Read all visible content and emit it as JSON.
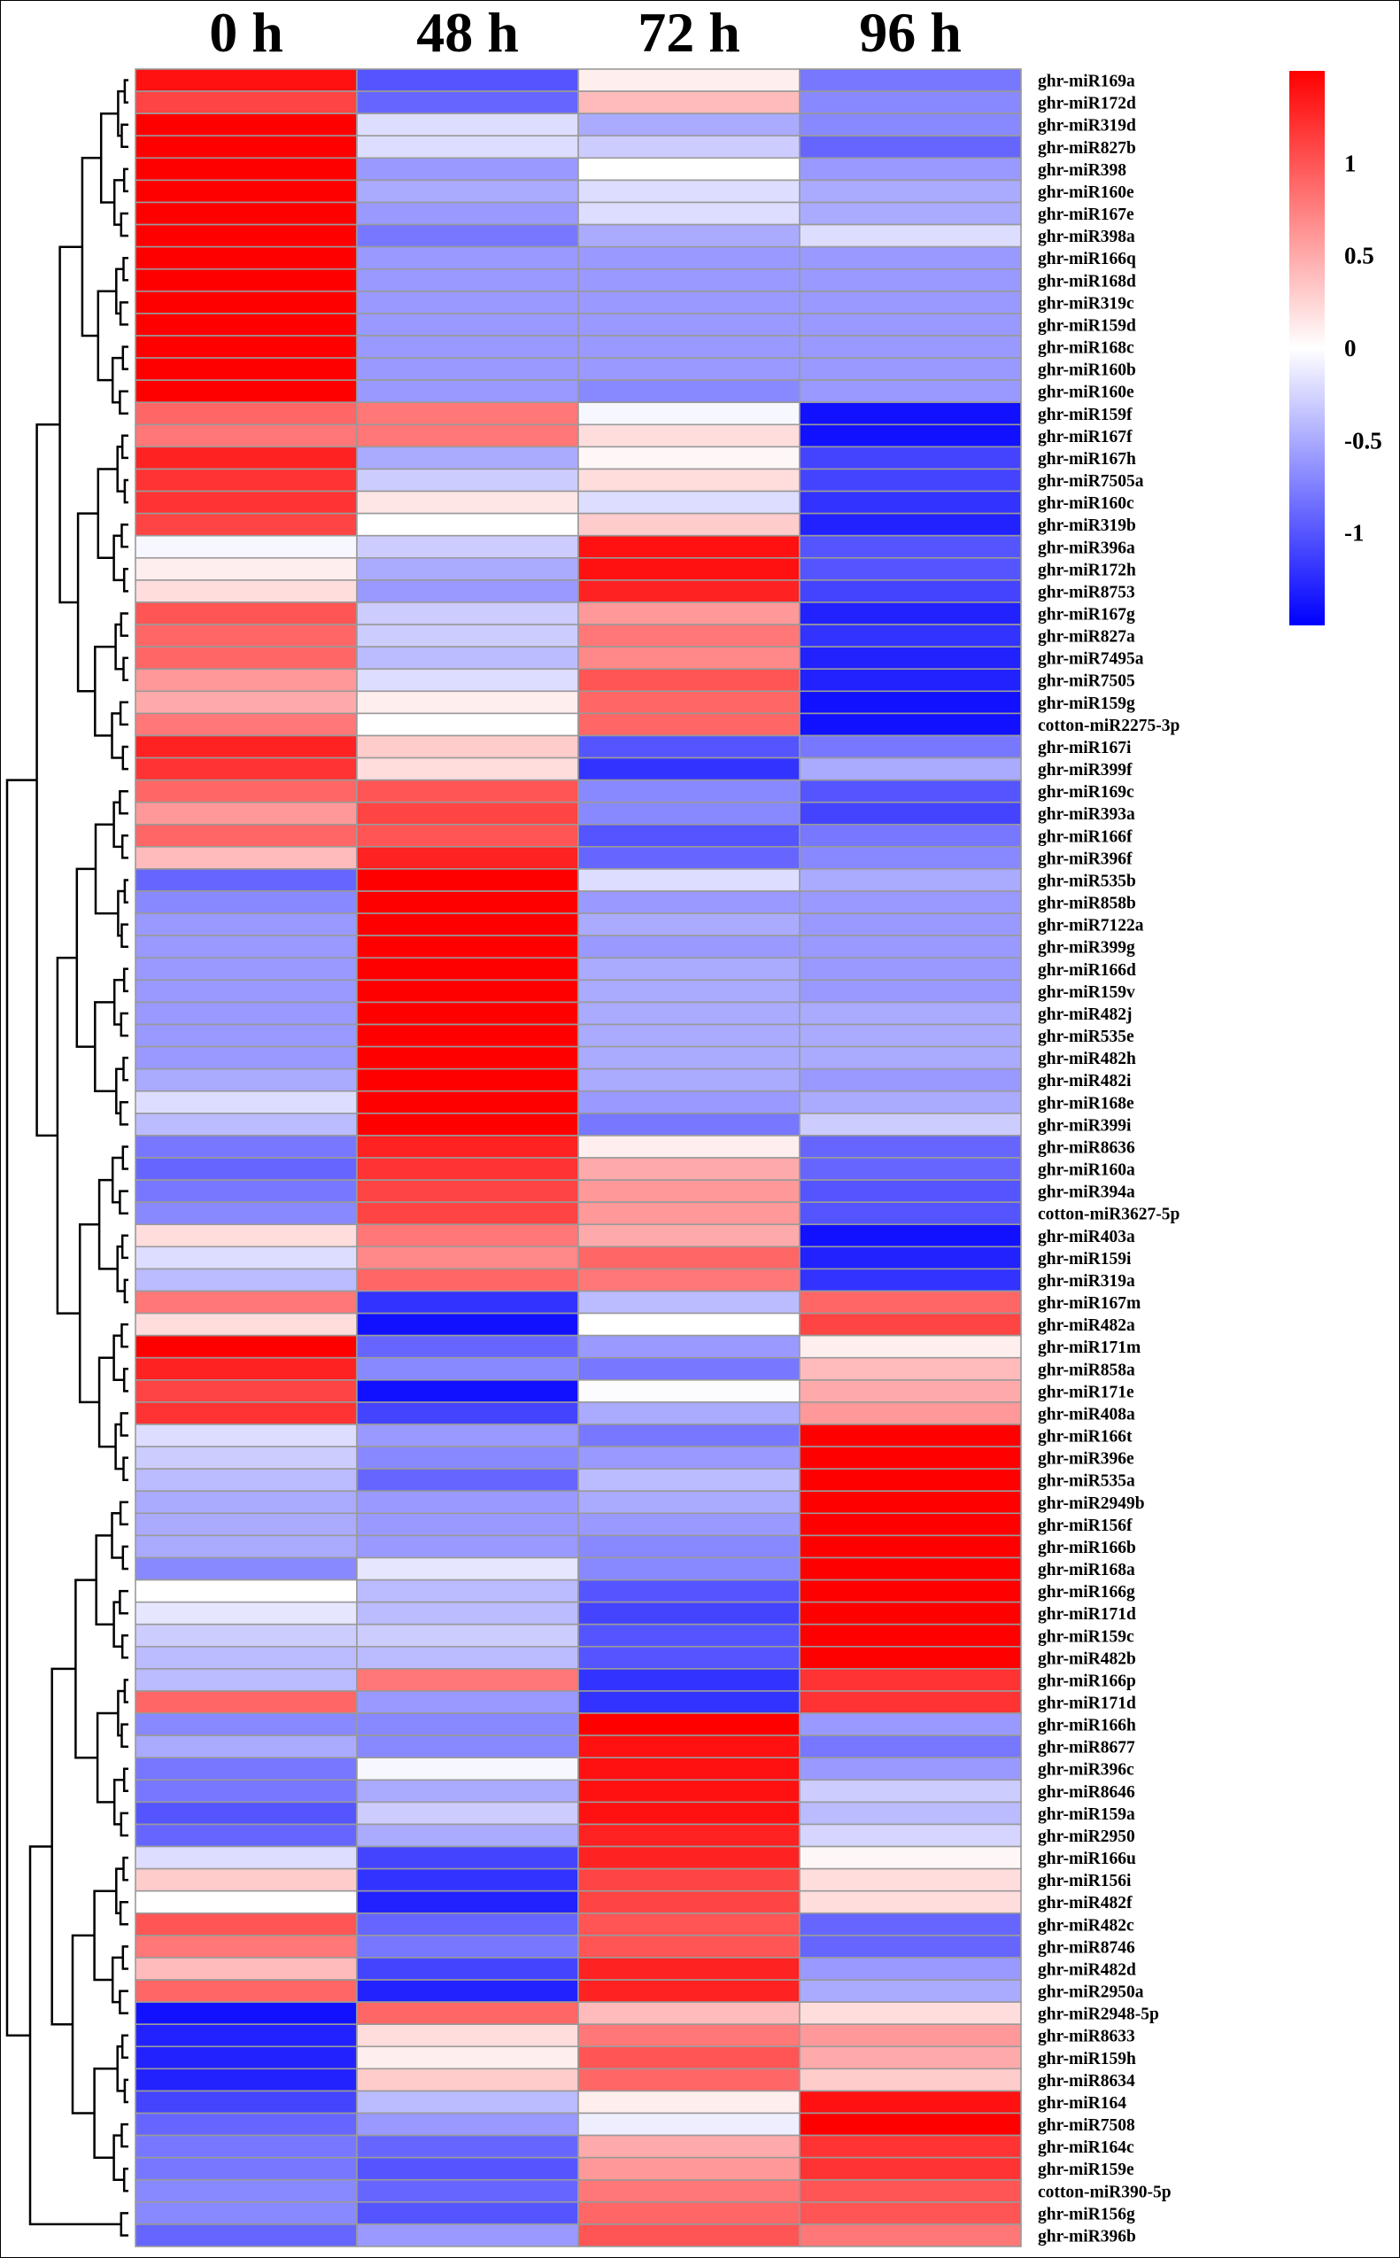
{
  "chart_data": {
    "type": "heatmap",
    "title": "",
    "columns": [
      "0 h",
      "48 h",
      "72 h",
      "96 h"
    ],
    "rows": [
      "ghr-miR169a",
      "ghr-miR172d",
      "ghr-miR319d",
      "ghr-miR827b",
      "ghr-miR398",
      "ghr-miR160e",
      "ghr-miR167e",
      "ghr-miR398a",
      "ghr-miR166q",
      "ghr-miR168d",
      "ghr-miR319c",
      "ghr-miR159d",
      "ghr-miR168c",
      "ghr-miR160b",
      "ghr-miR160e",
      "ghr-miR159f",
      "ghr-miR167f",
      "ghr-miR167h",
      "ghr-miR7505a",
      "ghr-miR160c",
      "ghr-miR319b",
      "ghr-miR396a",
      "ghr-miR172h",
      "ghr-miR8753",
      "ghr-miR167g",
      "ghr-miR827a",
      "ghr-miR7495a",
      "ghr-miR7505",
      "ghr-miR159g",
      "cotton-miR2275-3p",
      "ghr-miR167i",
      "ghr-miR399f",
      "ghr-miR169c",
      "ghr-miR393a",
      "ghr-miR166f",
      "ghr-miR396f",
      "ghr-miR535b",
      "ghr-miR858b",
      "ghr-miR7122a",
      "ghr-miR399g",
      "ghr-miR166d",
      "ghr-miR159v",
      "ghr-miR482j",
      "ghr-miR535e",
      "ghr-miR482h",
      "ghr-miR482i",
      "ghr-miR168e",
      "ghr-miR399i",
      "ghr-miR8636",
      "ghr-miR160a",
      "ghr-miR394a",
      "cotton-miR3627-5p",
      "ghr-miR403a",
      "ghr-miR159i",
      "ghr-miR319a",
      "ghr-miR167m",
      "ghr-miR482a",
      "ghr-miR171m",
      "ghr-miR858a",
      "ghr-miR171e",
      "ghr-miR408a",
      "ghr-miR166t",
      "ghr-miR396e",
      "ghr-miR535a",
      "ghr-miR2949b",
      "ghr-miR156f",
      "ghr-miR166b",
      "ghr-miR168a",
      "ghr-miR166g",
      "ghr-miR171d",
      "ghr-miR159c",
      "ghr-miR482b",
      "ghr-miR166p",
      "ghr-miR171d",
      "ghr-miR166h",
      "ghr-miR8677",
      "ghr-miR396c",
      "ghr-miR8646",
      "ghr-miR159a",
      "ghr-miR2950",
      "ghr-miR166u",
      "ghr-miR156i",
      "ghr-miR482f",
      "ghr-miR482c",
      "ghr-miR8746",
      "ghr-miR482d",
      "ghr-miR2950a",
      "ghr-miR2948-5p",
      "ghr-miR8633",
      "ghr-miR159h",
      "ghr-miR8634",
      "ghr-miR164",
      "ghr-miR7508",
      "ghr-miR164c",
      "ghr-miR159e",
      "cotton-miR390-5p",
      "ghr-miR156g",
      "ghr-miR396b"
    ],
    "values": [
      [
        1.4,
        -1.0,
        0.1,
        -0.8
      ],
      [
        1.1,
        -0.9,
        0.4,
        -0.7
      ],
      [
        1.5,
        -0.2,
        -0.5,
        -0.7
      ],
      [
        1.5,
        -0.2,
        -0.3,
        -0.9
      ],
      [
        1.5,
        -0.6,
        0.0,
        -0.6
      ],
      [
        1.5,
        -0.5,
        -0.2,
        -0.5
      ],
      [
        1.5,
        -0.6,
        -0.2,
        -0.5
      ],
      [
        1.5,
        -0.8,
        -0.5,
        -0.2
      ],
      [
        1.5,
        -0.6,
        -0.6,
        -0.6
      ],
      [
        1.5,
        -0.6,
        -0.6,
        -0.6
      ],
      [
        1.5,
        -0.6,
        -0.6,
        -0.6
      ],
      [
        1.5,
        -0.6,
        -0.6,
        -0.6
      ],
      [
        1.5,
        -0.6,
        -0.6,
        -0.6
      ],
      [
        1.5,
        -0.6,
        -0.6,
        -0.6
      ],
      [
        1.5,
        -0.6,
        -0.7,
        -0.6
      ],
      [
        0.9,
        0.8,
        -0.05,
        -1.4
      ],
      [
        0.8,
        0.8,
        0.2,
        -1.4
      ],
      [
        1.3,
        -0.5,
        0.05,
        -1.1
      ],
      [
        1.2,
        -0.3,
        0.2,
        -1.1
      ],
      [
        1.2,
        0.15,
        -0.2,
        -1.2
      ],
      [
        1.1,
        0.0,
        0.3,
        -1.3
      ],
      [
        -0.05,
        -0.3,
        1.4,
        -1.0
      ],
      [
        0.1,
        -0.5,
        1.4,
        -1.0
      ],
      [
        0.2,
        -0.6,
        1.3,
        -1.1
      ],
      [
        1.0,
        -0.3,
        0.6,
        -1.3
      ],
      [
        0.9,
        -0.3,
        0.8,
        -1.2
      ],
      [
        0.9,
        -0.4,
        0.7,
        -1.3
      ],
      [
        0.6,
        -0.2,
        1.0,
        -1.3
      ],
      [
        0.5,
        0.1,
        0.9,
        -1.4
      ],
      [
        0.8,
        0.0,
        0.9,
        -1.4
      ],
      [
        1.3,
        0.3,
        -1.0,
        -0.8
      ],
      [
        1.2,
        0.2,
        -1.2,
        -0.5
      ],
      [
        0.9,
        1.0,
        -0.7,
        -1.0
      ],
      [
        0.6,
        1.1,
        -0.7,
        -1.1
      ],
      [
        0.9,
        1.0,
        -1.0,
        -0.8
      ],
      [
        0.4,
        1.3,
        -0.9,
        -0.7
      ],
      [
        -0.9,
        1.5,
        -0.2,
        -0.5
      ],
      [
        -0.7,
        1.5,
        -0.6,
        -0.6
      ],
      [
        -0.6,
        1.5,
        -0.5,
        -0.6
      ],
      [
        -0.6,
        1.5,
        -0.6,
        -0.6
      ],
      [
        -0.6,
        1.5,
        -0.5,
        -0.6
      ],
      [
        -0.6,
        1.5,
        -0.5,
        -0.6
      ],
      [
        -0.6,
        1.5,
        -0.5,
        -0.5
      ],
      [
        -0.6,
        1.5,
        -0.5,
        -0.5
      ],
      [
        -0.6,
        1.5,
        -0.5,
        -0.5
      ],
      [
        -0.5,
        1.5,
        -0.5,
        -0.6
      ],
      [
        -0.2,
        1.5,
        -0.6,
        -0.5
      ],
      [
        -0.4,
        1.5,
        -0.8,
        -0.3
      ],
      [
        -0.8,
        1.3,
        0.1,
        -0.9
      ],
      [
        -0.9,
        1.2,
        0.5,
        -0.9
      ],
      [
        -0.8,
        1.1,
        0.6,
        -1.0
      ],
      [
        -0.7,
        1.1,
        0.6,
        -1.0
      ],
      [
        0.2,
        0.8,
        0.5,
        -1.4
      ],
      [
        -0.2,
        0.7,
        0.9,
        -1.3
      ],
      [
        -0.4,
        0.9,
        0.8,
        -1.2
      ],
      [
        0.8,
        -1.2,
        -0.4,
        0.9
      ],
      [
        0.2,
        -1.4,
        0.0,
        1.1
      ],
      [
        1.5,
        -0.9,
        -0.6,
        0.1
      ],
      [
        1.3,
        -0.7,
        -0.8,
        0.4
      ],
      [
        1.1,
        -1.4,
        -0.02,
        0.5
      ],
      [
        1.2,
        -1.1,
        -0.5,
        0.6
      ],
      [
        -0.2,
        -0.6,
        -0.8,
        1.5
      ],
      [
        -0.3,
        -0.7,
        -0.6,
        1.5
      ],
      [
        -0.4,
        -0.9,
        -0.4,
        1.5
      ],
      [
        -0.5,
        -0.6,
        -0.5,
        1.5
      ],
      [
        -0.5,
        -0.6,
        -0.6,
        1.5
      ],
      [
        -0.5,
        -0.6,
        -0.7,
        1.5
      ],
      [
        -0.7,
        -0.15,
        -0.7,
        1.5
      ],
      [
        0.0,
        -0.4,
        -1.0,
        1.5
      ],
      [
        -0.15,
        -0.4,
        -1.1,
        1.5
      ],
      [
        -0.3,
        -0.3,
        -1.0,
        1.5
      ],
      [
        -0.4,
        -0.4,
        -1.0,
        1.5
      ],
      [
        -0.4,
        0.8,
        -1.2,
        1.2
      ],
      [
        0.9,
        -0.6,
        -1.2,
        1.2
      ],
      [
        -0.7,
        -0.7,
        1.5,
        -0.6
      ],
      [
        -0.5,
        -0.7,
        1.4,
        -0.8
      ],
      [
        -0.8,
        -0.05,
        1.4,
        -0.6
      ],
      [
        -0.8,
        -0.5,
        1.4,
        -0.3
      ],
      [
        -1.0,
        -0.3,
        1.4,
        -0.4
      ],
      [
        -0.9,
        -0.5,
        1.3,
        -0.25
      ],
      [
        -0.2,
        -1.1,
        1.3,
        0.05
      ],
      [
        0.3,
        -1.2,
        1.1,
        0.2
      ],
      [
        0.0,
        -1.3,
        1.1,
        0.2
      ],
      [
        1.0,
        -0.9,
        1.0,
        -0.9
      ],
      [
        0.8,
        -0.8,
        1.0,
        -0.9
      ],
      [
        0.4,
        -1.1,
        1.3,
        -0.6
      ],
      [
        0.9,
        -1.3,
        1.3,
        -0.5
      ],
      [
        -1.4,
        0.9,
        0.4,
        0.2
      ],
      [
        -1.3,
        0.2,
        0.8,
        0.6
      ],
      [
        -1.3,
        0.1,
        1.0,
        0.5
      ],
      [
        -1.3,
        0.3,
        0.9,
        0.3
      ],
      [
        -1.1,
        -0.4,
        0.1,
        1.4
      ],
      [
        -0.9,
        -0.6,
        -0.1,
        1.5
      ],
      [
        -0.8,
        -0.9,
        0.5,
        1.2
      ],
      [
        -0.8,
        -1.0,
        0.6,
        1.2
      ],
      [
        -0.7,
        -0.9,
        0.8,
        1.0
      ],
      [
        -0.7,
        -1.0,
        0.9,
        1.0
      ],
      [
        -0.9,
        -0.6,
        1.0,
        0.8
      ]
    ],
    "colorbar": {
      "ticks": [
        1,
        0.5,
        0,
        -0.5,
        -1
      ],
      "tick_labels": [
        "1",
        "0.5",
        "0",
        "-0.5",
        "-1"
      ],
      "range": [
        -1.5,
        1.5
      ],
      "colors": {
        "low": "#0000ff",
        "mid": "#ffffff",
        "high": "#ff0000"
      }
    },
    "cell_border_color": "#9a9a9a",
    "row_dendrogram": true,
    "legend_position": "top-right"
  }
}
